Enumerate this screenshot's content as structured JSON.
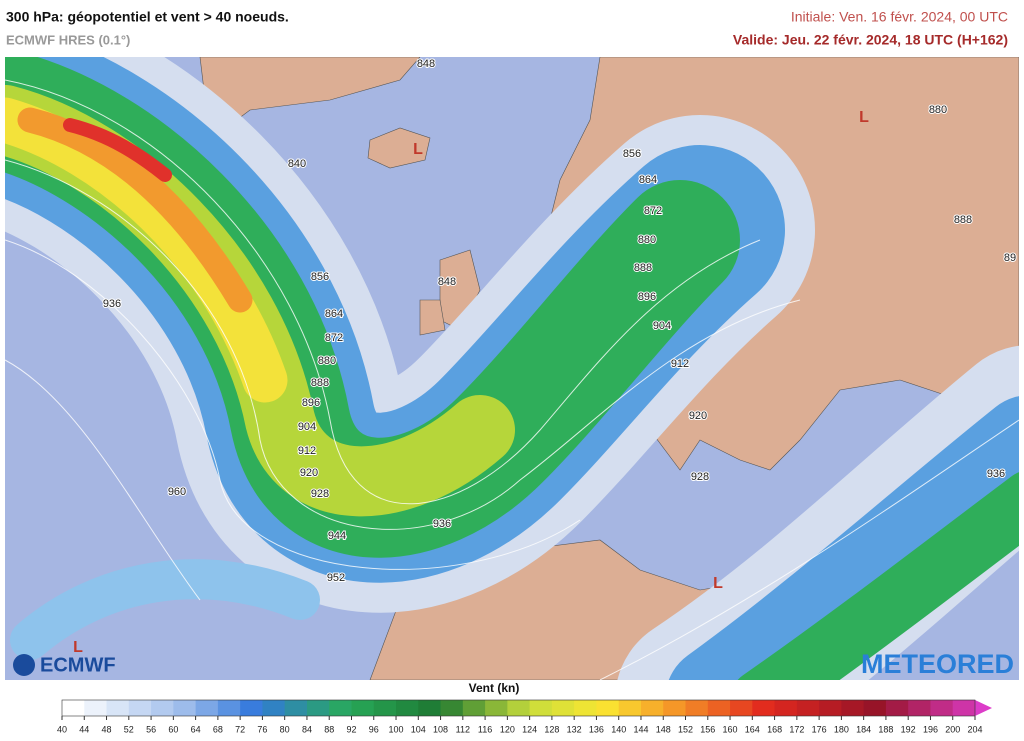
{
  "header": {
    "title": "300 hPa: géopotentiel et vent > 40 noeuds.",
    "model": "ECMWF HRES (0.1°)",
    "initial": "Initiale: Ven. 16 févr. 2024, 00 UTC",
    "valid": "Valide: Jeu. 22 févr. 2024, 18 UTC (H+162)"
  },
  "map": {
    "contour_labels": [
      "848",
      "840",
      "856",
      "864",
      "872",
      "880",
      "888",
      "896",
      "904",
      "912",
      "920",
      "928",
      "936",
      "944",
      "952",
      "960",
      "936",
      "848",
      "856",
      "864",
      "872",
      "880",
      "888",
      "896",
      "904",
      "912",
      "920",
      "928",
      "880",
      "888",
      "89",
      "936"
    ],
    "lows": [
      "L",
      "L",
      "L",
      "L"
    ]
  },
  "logos": {
    "left": "ECMWF",
    "right": "METEORED"
  },
  "colorbar": {
    "label": "Vent (kn)",
    "ticks": [
      40,
      44,
      48,
      52,
      56,
      60,
      64,
      68,
      72,
      76,
      80,
      84,
      88,
      92,
      96,
      100,
      104,
      108,
      112,
      116,
      120,
      124,
      128,
      132,
      136,
      140,
      144,
      148,
      152,
      156,
      160,
      164,
      168,
      172,
      176,
      180,
      184,
      188,
      192,
      196,
      200,
      204
    ]
  }
}
